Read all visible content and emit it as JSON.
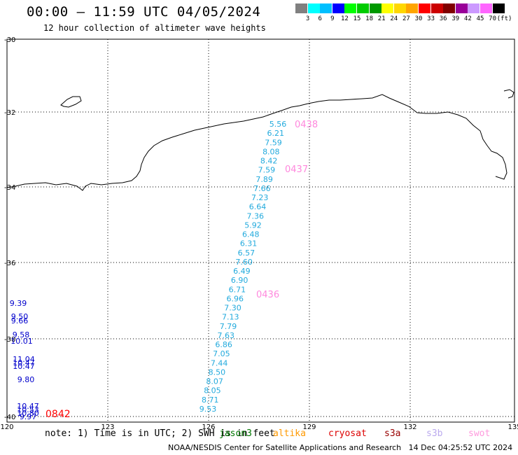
{
  "title": "00:00 – 11:59 UTC 04/05/2024",
  "subtitle": "12 hour collection of altimeter wave heights",
  "colorbar": {
    "labels": [
      "3",
      "6",
      "9",
      "12",
      "15",
      "18",
      "21",
      "24",
      "27",
      "30",
      "33",
      "36",
      "39",
      "42",
      "45",
      "70"
    ],
    "unit": "(ft)",
    "colors": [
      "#808080",
      "#00ffff",
      "#00bfff",
      "#0000ff",
      "#00ff00",
      "#00cc00",
      "#009900",
      "#ffff00",
      "#ffd700",
      "#ffa500",
      "#ff0000",
      "#cc0000",
      "#800000",
      "#990099",
      "#cc99ff",
      "#ff66ff",
      "#000000"
    ]
  },
  "map": {
    "lon_ticks": [
      "120",
      "123",
      "126",
      "129",
      "132",
      "135"
    ],
    "lat_ticks": [
      "-30",
      "-32",
      "-34",
      "-36",
      "-38",
      "-40"
    ],
    "passes": [
      {
        "name": "0438",
        "color": "#ff88dd"
      },
      {
        "name": "0437",
        "color": "#ff88dd"
      },
      {
        "name": "0436",
        "color": "#ff88dd"
      },
      {
        "name": "0842",
        "color": "#ff0000"
      }
    ],
    "track_color": "#22aadd",
    "track_values": [
      "5.56",
      "6.21",
      "7.59",
      "8.08",
      "8.42",
      "7.59",
      "7.89",
      "7.66",
      "7.23",
      "6.64",
      "7.36",
      "5.92",
      "6.48",
      "6.31",
      "6.57",
      "7.60",
      "6.49",
      "6.90",
      "6.71",
      "6.96",
      "7.30",
      "7.13",
      "7.79",
      "7.63",
      "6.86",
      "7.05",
      "7.44",
      "8.50",
      "8.07",
      "8.05",
      "8.71",
      "9.53"
    ],
    "west_color": "#0000cc",
    "west_values": [
      "9.39",
      "9.50",
      "9.66",
      "9.58",
      "10.01",
      "11.04",
      "10.47",
      "10.47",
      "9.80",
      "10.47",
      "10.53",
      "10.80",
      "9.97"
    ]
  },
  "note": "note: 1) Time is in UTC; 2) SWH is in feet",
  "satellites": [
    {
      "name": "jason3",
      "color": "#007700"
    },
    {
      "name": "altika",
      "color": "#ff9900"
    },
    {
      "name": "cryosat",
      "color": "#dd0000"
    },
    {
      "name": "s3a",
      "color": "#990000"
    },
    {
      "name": "s3b",
      "color": "#bbaaee"
    },
    {
      "name": "swot",
      "color": "#ff99dd"
    }
  ],
  "credit": "NOAA/NESDIS Center for Satellite Applications and Research   14 Dec 04:25:52 UTC 2024"
}
